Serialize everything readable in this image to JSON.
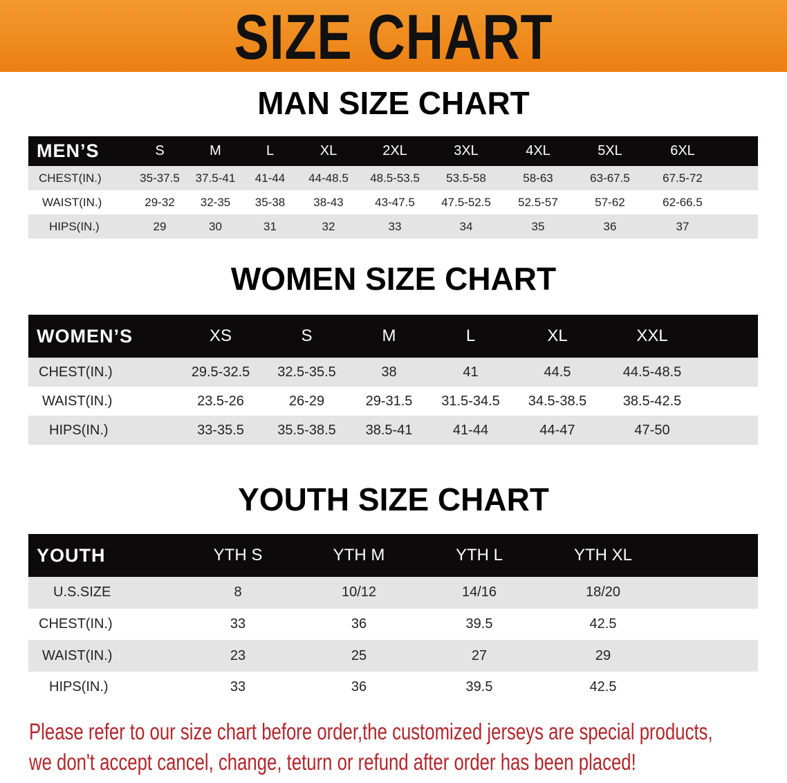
{
  "banner_title": "SIZE CHART",
  "men": {
    "title": "MAN SIZE CHART",
    "header": "MEN’S",
    "sizes": [
      "S",
      "M",
      "L",
      "XL",
      "2XL",
      "3XL",
      "4XL",
      "5XL",
      "6XL"
    ],
    "rows": [
      {
        "label": "CHEST(IN.)",
        "values": [
          "35-37.5",
          "37.5-41",
          "41-44",
          "44-48.5",
          "48.5-53.5",
          "53.5-58",
          "58-63",
          "63-67.5",
          "67.5-72"
        ]
      },
      {
        "label": "WAIST(IN.)",
        "values": [
          "29-32",
          "32-35",
          "35-38",
          "38-43",
          "43-47.5",
          "47.5-52.5",
          "52.5-57",
          "57-62",
          "62-66.5"
        ]
      },
      {
        "label": "HIPS(IN.)",
        "values": [
          "29",
          "30",
          "31",
          "32",
          "33",
          "34",
          "35",
          "36",
          "37"
        ]
      }
    ]
  },
  "women": {
    "title": "WOMEN SIZE CHART",
    "header": "WOMEN’S",
    "sizes": [
      "XS",
      "S",
      "M",
      "L",
      "XL",
      "XXL"
    ],
    "rows": [
      {
        "label": "CHEST(IN.)",
        "values": [
          "29.5-32.5",
          "32.5-35.5",
          "38",
          "41",
          "44.5",
          "44.5-48.5"
        ]
      },
      {
        "label": "WAIST(IN.)",
        "values": [
          "23.5-26",
          "26-29",
          "29-31.5",
          "31.5-34.5",
          "34.5-38.5",
          "38.5-42.5"
        ]
      },
      {
        "label": "HIPS(IN.)",
        "values": [
          "33-35.5",
          "35.5-38.5",
          "38.5-41",
          "41-44",
          "44-47",
          "47-50"
        ]
      }
    ]
  },
  "youth": {
    "title": "YOUTH SIZE CHART",
    "header": "YOUTH",
    "sizes": [
      "YTH S",
      "YTH M",
      "YTH L",
      "YTH XL"
    ],
    "rows": [
      {
        "label": "U.S.SIZE",
        "values": [
          "8",
          "10/12",
          "14/16",
          "18/20"
        ]
      },
      {
        "label": "CHEST(IN.)",
        "values": [
          "33",
          "36",
          "39.5",
          "42.5"
        ]
      },
      {
        "label": "WAIST(IN.)",
        "values": [
          "23",
          "25",
          "27",
          "29"
        ]
      },
      {
        "label": "HIPS(IN.)",
        "values": [
          "33",
          "36",
          "39.5",
          "42.5"
        ]
      }
    ]
  },
  "note": [
    "Please refer to our size chart before order,the customized jerseys are special products,",
    "we don't accept cancel, change, teturn or refund after order has been placed!"
  ],
  "colors": {
    "banner": "#ec7f12",
    "header_bg": "#0c0a0a",
    "row_alt": "#e4e4e4",
    "note": "#b3262b"
  }
}
